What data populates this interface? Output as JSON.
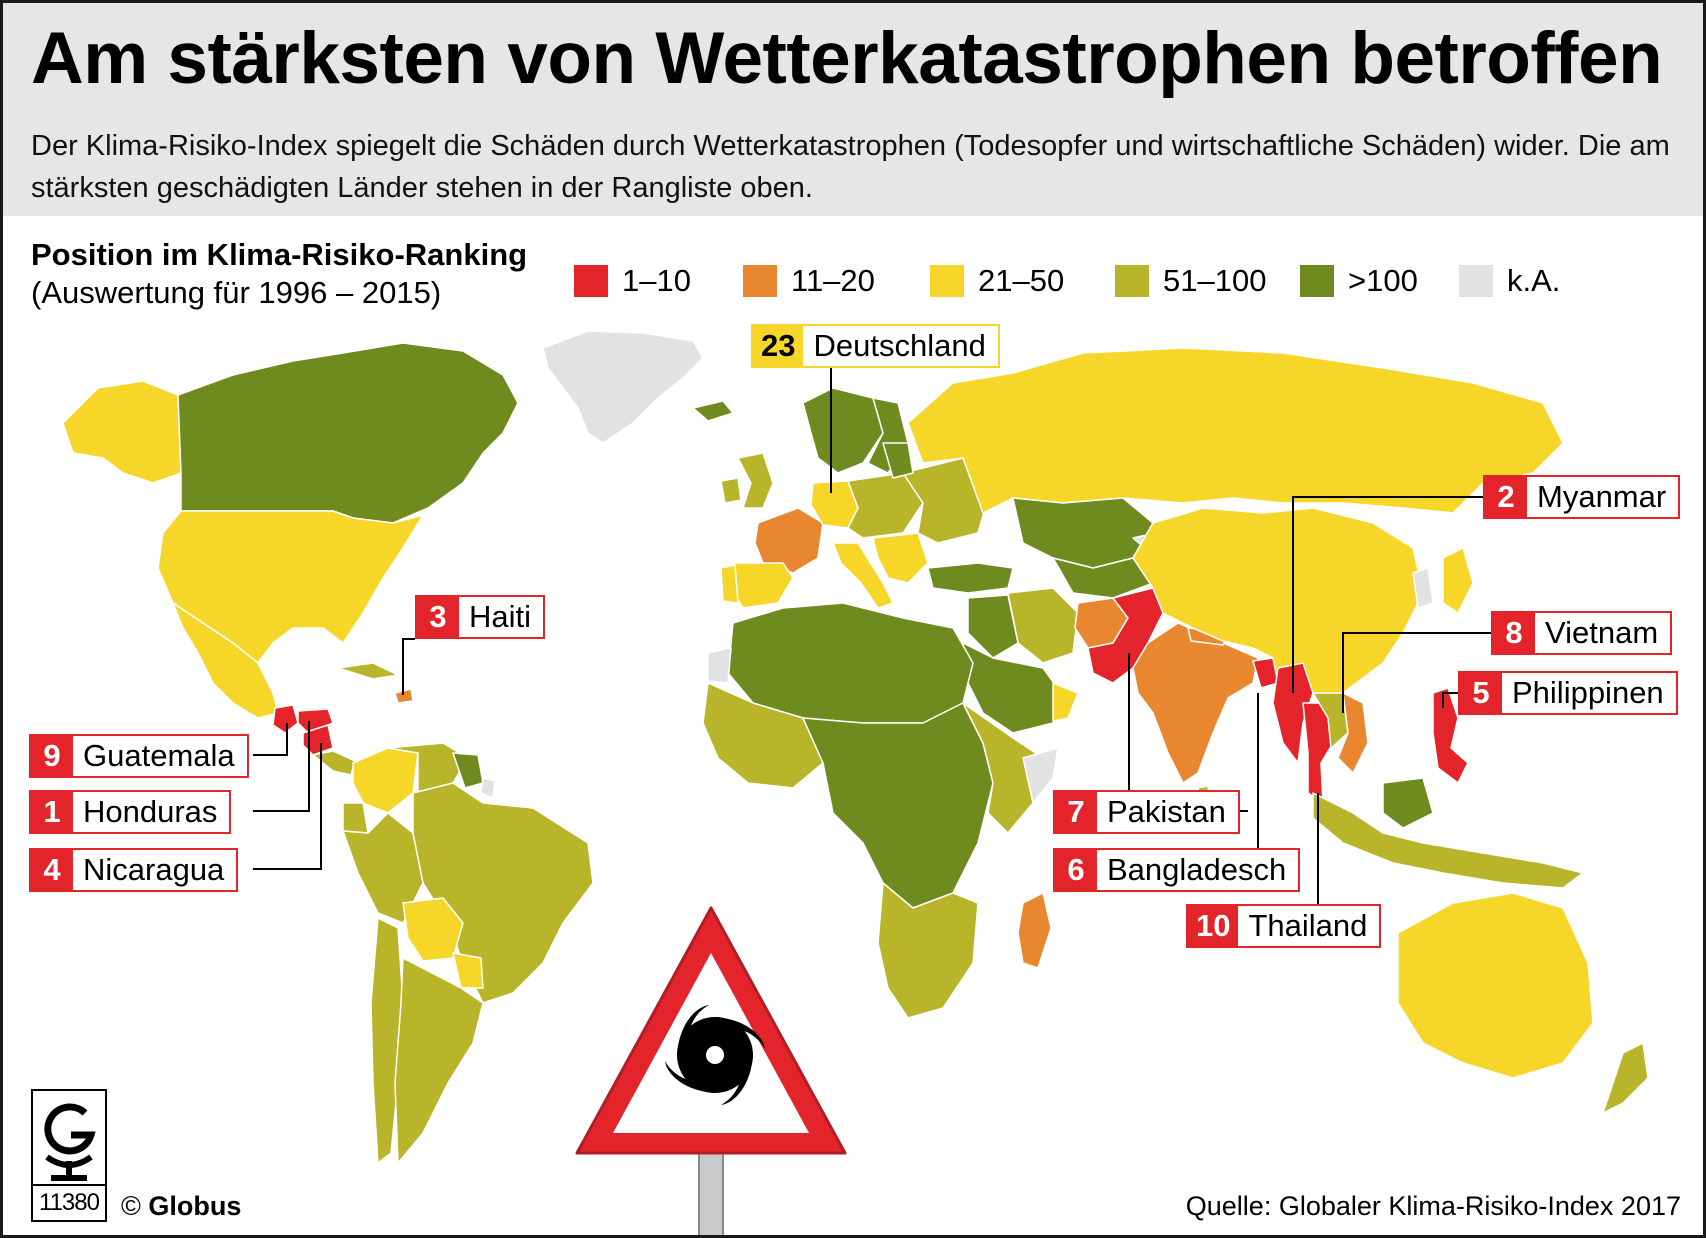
{
  "title": "Am stärksten von Wetterkatastrophen betroffen",
  "subtitle": "Der Klima-Risiko-Index spiegelt die Schäden durch Wetterkatastrophen (Todesopfer und wirtschaftliche Schäden) wider. Die am stärksten geschädigten Länder stehen in der Rangliste oben.",
  "legend": {
    "title": "Position im Klima-Risiko-Ranking",
    "subtitle": "(Auswertung für 1996 – 2015)",
    "items": [
      {
        "label": "1–10",
        "color": "#e3242b"
      },
      {
        "label": "11–20",
        "color": "#e8872f"
      },
      {
        "label": "21–50",
        "color": "#f7d62a"
      },
      {
        "label": "51–100",
        "color": "#b8b52a"
      },
      {
        "label": ">100",
        "color": "#6f8a1e"
      },
      {
        "label": "k.A.",
        "color": "#e2e2e2"
      }
    ]
  },
  "callouts": {
    "deutschland": {
      "rank": "23",
      "name": "Deutschland"
    },
    "myanmar": {
      "rank": "2",
      "name": "Myanmar"
    },
    "haiti": {
      "rank": "3",
      "name": "Haiti"
    },
    "vietnam": {
      "rank": "8",
      "name": "Vietnam"
    },
    "philippinen": {
      "rank": "5",
      "name": "Philippinen"
    },
    "guatemala": {
      "rank": "9",
      "name": "Guatemala"
    },
    "honduras": {
      "rank": "1",
      "name": "Honduras"
    },
    "nicaragua": {
      "rank": "4",
      "name": "Nicaragua"
    },
    "pakistan": {
      "rank": "7",
      "name": "Pakistan"
    },
    "bangladesch": {
      "rank": "6",
      "name": "Bangladesch"
    },
    "thailand": {
      "rank": "10",
      "name": "Thailand"
    }
  },
  "footer": {
    "logo_number": "11380",
    "copyright_symbol": "©",
    "copyright_name": "Globus",
    "source": "Quelle: Globaler Klima-Risiko-Index 2017"
  }
}
